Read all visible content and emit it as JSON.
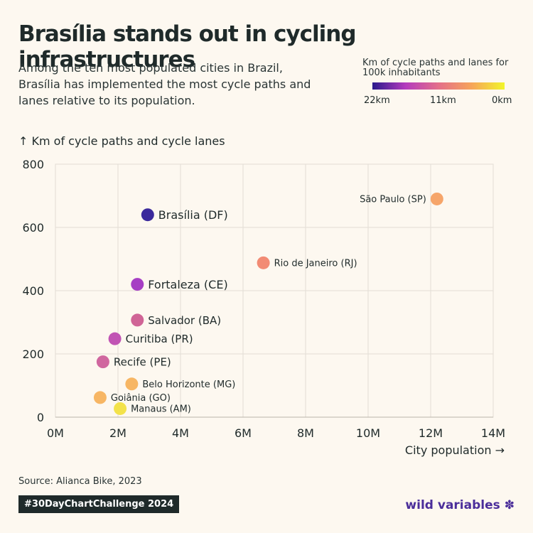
{
  "header": {
    "title": "Brasília stands out in cycling infrastructures",
    "subtitle": "Among the ten most populated cities in Brazil, Brasília has implemented the most cycle paths and lanes relative to its population."
  },
  "legend": {
    "title": "Km of cycle paths and lanes for 100k inhabitants",
    "ticks": [
      "22km",
      "11km",
      "0km"
    ],
    "colors": [
      "#2a1a8c",
      "#b43bbd",
      "#e46f8a",
      "#f6a45a",
      "#f2f52b"
    ]
  },
  "axes": {
    "y_label": "↑ Km of cycle paths and cycle lanes",
    "x_label": "City population →"
  },
  "chart_data": {
    "type": "scatter",
    "title": "Brasília stands out in cycling infrastructures",
    "xlabel": "City population →",
    "ylabel": "↑ Km of cycle paths and cycle lanes",
    "xlim": [
      0,
      14000000
    ],
    "ylim": [
      0,
      800
    ],
    "x_ticks": [
      0,
      2000000,
      4000000,
      6000000,
      8000000,
      10000000,
      12000000,
      14000000
    ],
    "x_tick_labels": [
      "0M",
      "2M",
      "4M",
      "6M",
      "8M",
      "10M",
      "12M",
      "14M"
    ],
    "y_ticks": [
      0,
      200,
      400,
      600,
      800
    ],
    "y_tick_labels": [
      "0",
      "200",
      "400",
      "600",
      "800"
    ],
    "grid": true,
    "points": [
      {
        "label": "São Paulo (SP)",
        "x": 12200000,
        "y": 690,
        "color": "#f6a56a",
        "label_pos": "left",
        "size": "small"
      },
      {
        "label": "Brasília (DF)",
        "x": 2950000,
        "y": 640,
        "color": "#3b2a9c",
        "label_pos": "right",
        "size": "large"
      },
      {
        "label": "Rio de Janeiro (RJ)",
        "x": 6650000,
        "y": 488,
        "color": "#f28b74",
        "label_pos": "right",
        "size": "small"
      },
      {
        "label": "Fortaleza (CE)",
        "x": 2620000,
        "y": 420,
        "color": "#a63ec4",
        "label_pos": "right",
        "size": "large"
      },
      {
        "label": "Salvador (BA)",
        "x": 2620000,
        "y": 307,
        "color": "#d06496",
        "label_pos": "right",
        "size": "medium"
      },
      {
        "label": "Curitiba (PR)",
        "x": 1900000,
        "y": 248,
        "color": "#c154b4",
        "label_pos": "right",
        "size": "medium"
      },
      {
        "label": "Recife (PE)",
        "x": 1520000,
        "y": 175,
        "color": "#d0679f",
        "label_pos": "right",
        "size": "medium"
      },
      {
        "label": "Belo Horizonte (MG)",
        "x": 2440000,
        "y": 105,
        "color": "#f7b664",
        "label_pos": "right",
        "size": "small"
      },
      {
        "label": "Goiânia (GO)",
        "x": 1430000,
        "y": 62,
        "color": "#f7b664",
        "label_pos": "right",
        "size": "small"
      },
      {
        "label": "Manaus (AM)",
        "x": 2070000,
        "y": 27,
        "color": "#f3e24a",
        "label_pos": "right",
        "size": "small"
      }
    ]
  },
  "footer": {
    "source": "Source: Alianca Bike, 2023",
    "badge": "#30DayChartChallenge 2024",
    "brand": "wild variables",
    "brand_icon": "✽"
  }
}
